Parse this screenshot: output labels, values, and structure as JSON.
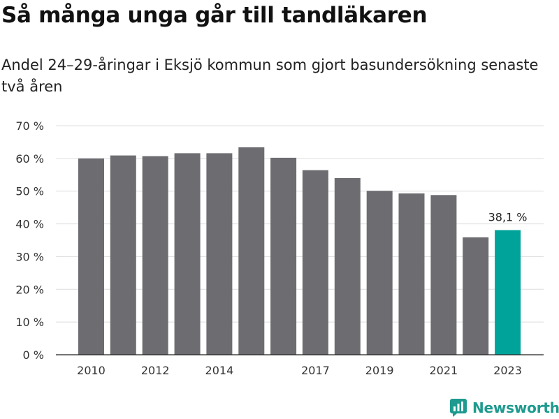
{
  "title": "Så många unga går till tandläkaren",
  "subtitle": "Andel 24–29-åringar i Eksjö kommun som gjort basundersökning senaste två åren",
  "brand": {
    "name": "Newsworthy",
    "color": "#1e9a8e",
    "icon": "newsworthy-logo-icon"
  },
  "colors": {
    "bar": "#6d6c71",
    "highlight": "#00a39a",
    "grid": "#dddddd",
    "axis": "#222222"
  },
  "chart_data": {
    "type": "bar",
    "categories": [
      "2010",
      "2011",
      "2012",
      "2013",
      "2014",
      "2015",
      "2016",
      "2017",
      "2018",
      "2019",
      "2020",
      "2021",
      "2022",
      "2023"
    ],
    "values": [
      60.0,
      60.9,
      60.7,
      61.6,
      61.6,
      63.4,
      60.2,
      56.4,
      54.0,
      50.1,
      49.3,
      48.8,
      35.9,
      38.1
    ],
    "highlight_index": 13,
    "x_tick_labels": [
      "2010",
      "2012",
      "2014",
      "2017",
      "2019",
      "2021",
      "2023"
    ],
    "y_ticks": [
      0,
      10,
      20,
      30,
      40,
      50,
      60,
      70
    ],
    "y_tick_labels": [
      "0 %",
      "10 %",
      "20 %",
      "30 %",
      "40 %",
      "50 %",
      "60 %",
      "70 %"
    ],
    "ylim": [
      0,
      70
    ],
    "unit": "%",
    "annotations": [
      {
        "category": "2023",
        "text": "38,1 %"
      }
    ],
    "grid": true,
    "legend": "none"
  }
}
